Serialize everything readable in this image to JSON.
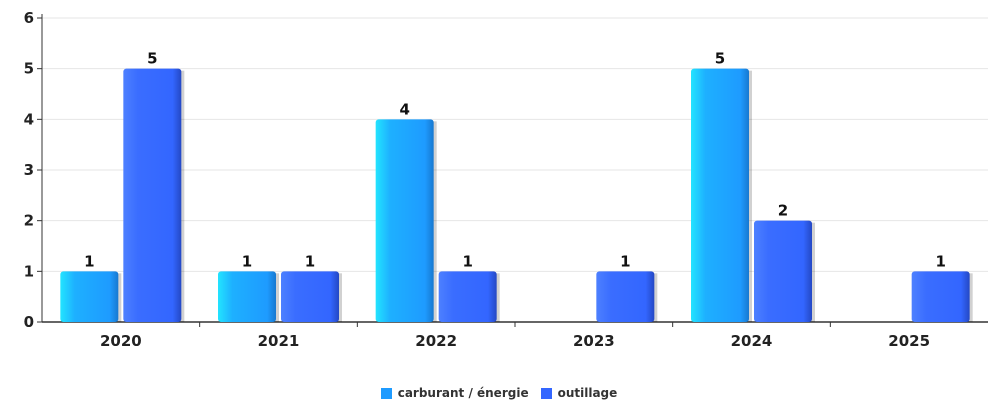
{
  "chart_data": {
    "type": "bar",
    "categories": [
      "2020",
      "2021",
      "2022",
      "2023",
      "2024",
      "2025"
    ],
    "series": [
      {
        "name": "carburant / énergie",
        "color": "#1e9bff",
        "values": [
          1,
          1,
          4,
          0,
          5,
          0
        ]
      },
      {
        "name": "outillage",
        "color": "#3366ff",
        "values": [
          5,
          1,
          1,
          1,
          2,
          1
        ]
      }
    ],
    "yticks": [
      "0",
      "1",
      "2",
      "3",
      "4",
      "5",
      "6"
    ],
    "ylim": [
      0,
      6
    ],
    "grid": true,
    "legend_position": "bottom-center"
  }
}
